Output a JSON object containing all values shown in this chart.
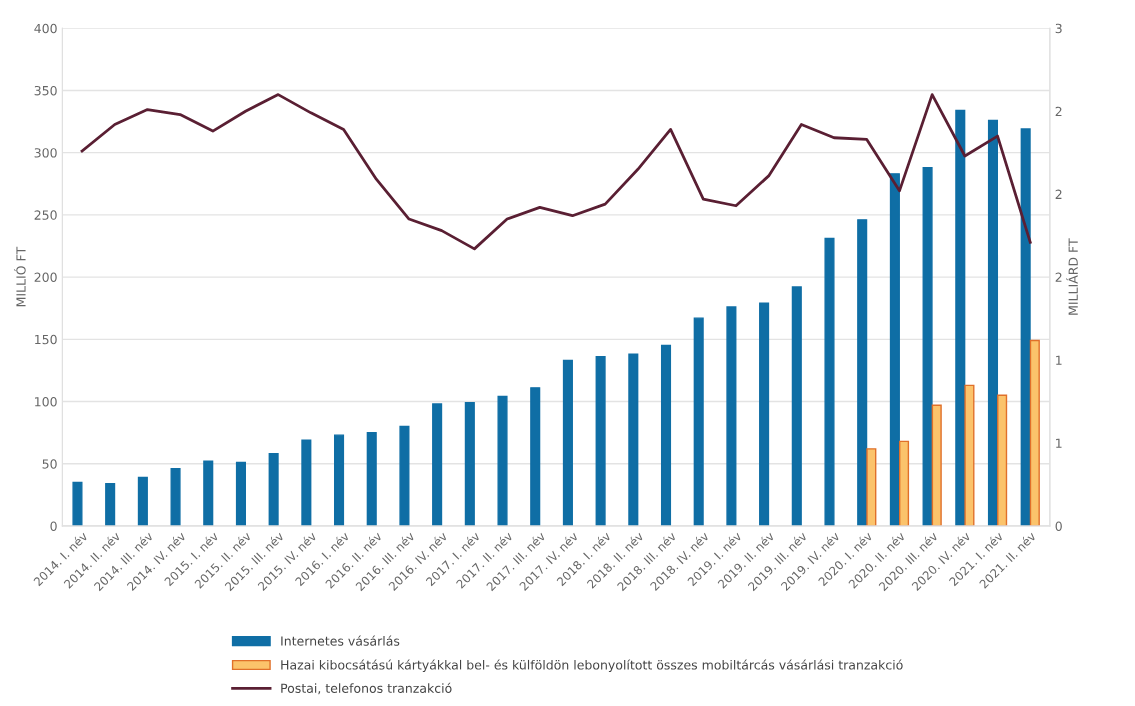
{
  "chart_data": {
    "type": "bar",
    "ylabel": "MILLIÓ FT",
    "y2label": "MILLIÁRD FT",
    "categories": [
      "2014. I. név",
      "2014. II. név",
      "2014. III. név",
      "2014. IV. név",
      "2015. I. név",
      "2015. II. név",
      "2015. III. név",
      "2015. IV. név",
      "2016. I. név",
      "2016. II. név",
      "2016. III. név",
      "2016. IV. név",
      "2017. I. név",
      "2017. II. név",
      "2017. III. név",
      "2017. IV. név",
      "2018. I. név",
      "2018. II. név",
      "2018. III. név",
      "2018. IV. név",
      "2019. I. név",
      "2019. II. név",
      "2019. III. név",
      "2019. IV. név",
      "2020. I. név",
      "2020. II. név",
      "2020. III. név",
      "2020. IV. név",
      "2021. I. név",
      "2021. II. név"
    ],
    "series": [
      {
        "name": "Internetes vásárlás",
        "color": "#0f6ea5",
        "values": [
          35,
          34,
          39,
          46,
          52,
          51,
          58,
          69,
          73,
          75,
          80,
          98,
          99,
          104,
          111,
          133,
          136,
          138,
          145,
          167,
          176,
          179,
          192,
          231,
          246,
          283,
          288,
          334,
          326,
          319
        ]
      },
      {
        "name": "Hazai kibocsátású kártyákkal bel- és külföldön lebonyolított összes mobiltárcás vásárlási tranzakció",
        "color": "#fbc36b",
        "values": [
          null,
          null,
          null,
          null,
          null,
          null,
          null,
          null,
          null,
          null,
          null,
          null,
          null,
          null,
          null,
          null,
          null,
          null,
          null,
          null,
          null,
          null,
          null,
          null,
          62,
          68,
          97,
          113,
          105,
          149
        ]
      },
      {
        "name": "Postai, telefonos tranzakció",
        "type": "line",
        "axis": "y2",
        "color": "#5a1f33",
        "values": [
          2.26,
          2.42,
          2.51,
          2.48,
          2.38,
          2.5,
          2.6,
          2.49,
          2.39,
          2.09,
          1.85,
          1.78,
          1.67,
          1.85,
          1.92,
          1.87,
          1.94,
          2.15,
          2.39,
          1.97,
          1.93,
          2.11,
          2.42,
          2.34,
          2.33,
          2.02,
          2.6,
          2.23,
          2.35,
          1.71
        ]
      }
    ],
    "ylim": [
      0,
      400
    ],
    "yticks": [
      0,
      50,
      100,
      150,
      200,
      250,
      300,
      350,
      400
    ],
    "y2lim": [
      0,
      3
    ],
    "y2ticks": [
      0,
      {
        "value": 0.5,
        "label": "1"
      },
      1,
      {
        "value": 1.5,
        "label": "2"
      },
      2,
      {
        "value": 2.5,
        "label": "2"
      },
      3
    ],
    "grid": "y",
    "legend": "bottom",
    "marker": "none",
    "line_style": "solid"
  }
}
